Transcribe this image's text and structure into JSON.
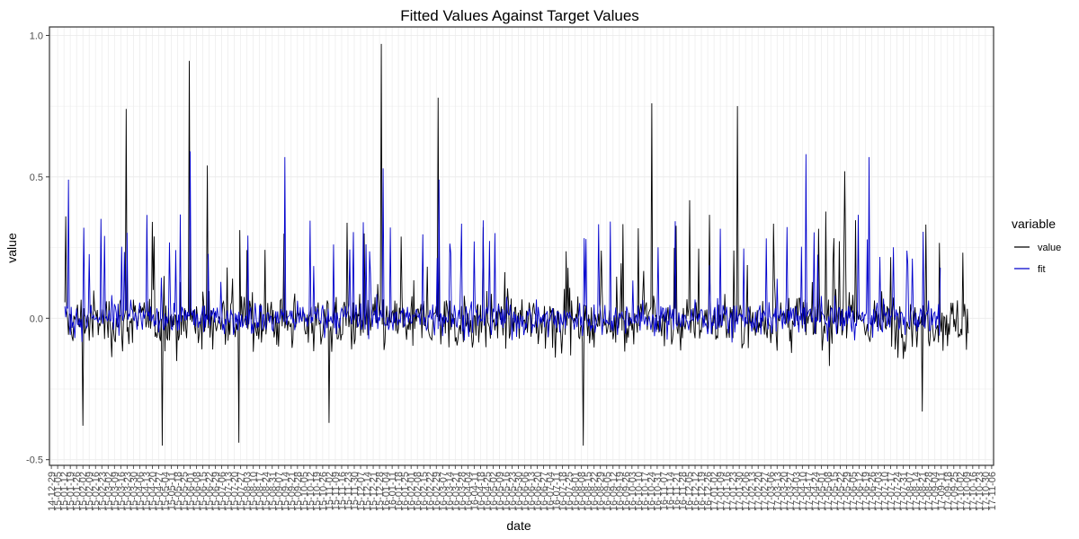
{
  "chart_data": {
    "type": "line",
    "title": "Fitted Values Against Target Values",
    "xlabel": "date",
    "ylabel": "value",
    "ylim": [
      -0.52,
      1.03
    ],
    "y_ticks": [
      -0.5,
      0.0,
      0.5,
      1.0
    ],
    "y_tick_labels": [
      "-0.5",
      "0.0",
      "0.5",
      "1.0"
    ],
    "grid": true,
    "legend": {
      "title": "variable",
      "placement": "right",
      "entries": [
        {
          "name": "value",
          "color": "#000000"
        },
        {
          "name": "fit",
          "color": "#0000cc"
        }
      ]
    },
    "x_tick_labels": [
      "14-12-29",
      "15-01-05",
      "15-01-12",
      "15-01-19",
      "15-01-26",
      "15-02-02",
      "15-02-09",
      "15-02-16",
      "15-02-23",
      "15-03-02",
      "15-03-09",
      "15-03-16",
      "15-03-23",
      "15-03-30",
      "15-04-06",
      "15-04-13",
      "15-04-20",
      "15-04-27",
      "15-05-04",
      "15-05-11",
      "15-05-18",
      "15-05-25",
      "15-06-01",
      "15-06-08",
      "15-06-15",
      "15-06-22",
      "15-06-29",
      "15-07-06",
      "15-07-13",
      "15-07-20",
      "15-07-27",
      "15-08-03",
      "15-08-10",
      "15-08-17",
      "15-08-24",
      "15-08-31",
      "15-09-07",
      "15-09-14",
      "15-09-21",
      "15-09-28",
      "15-10-05",
      "15-10-12",
      "15-10-19",
      "15-10-26",
      "15-11-02",
      "15-11-09",
      "15-11-16",
      "15-11-23",
      "15-11-30",
      "15-12-07",
      "15-12-14",
      "15-12-21",
      "15-12-28",
      "16-01-04",
      "16-01-11",
      "16-01-18",
      "16-01-25",
      "16-02-01",
      "16-02-08",
      "16-02-15",
      "16-02-22",
      "16-02-29",
      "16-03-07",
      "16-03-14",
      "16-03-21",
      "16-03-28",
      "16-04-04",
      "16-04-11",
      "16-04-18",
      "16-04-25",
      "16-05-02",
      "16-05-09",
      "16-05-16",
      "16-05-23",
      "16-05-30",
      "16-06-06",
      "16-06-13",
      "16-06-20",
      "16-06-27",
      "16-07-04",
      "16-07-11",
      "16-07-18",
      "16-07-25",
      "16-08-01",
      "16-08-08",
      "16-08-15",
      "16-08-22",
      "16-08-29",
      "16-09-05",
      "16-09-12",
      "16-09-19",
      "16-09-26",
      "16-10-03",
      "16-10-10",
      "16-10-17",
      "16-10-24",
      "16-10-31",
      "16-11-07",
      "16-11-14",
      "16-11-21",
      "16-11-28",
      "16-12-05",
      "16-12-12",
      "16-12-19",
      "16-12-26",
      "17-01-02",
      "17-01-09",
      "17-01-16",
      "17-01-23",
      "17-01-30",
      "17-02-06",
      "17-02-13",
      "17-02-20",
      "17-02-27",
      "17-03-06",
      "17-03-13",
      "17-03-20",
      "17-03-27",
      "17-04-03",
      "17-04-10",
      "17-04-17",
      "17-04-24",
      "17-05-01",
      "17-05-08",
      "17-05-15",
      "17-05-22",
      "17-05-29",
      "17-06-05",
      "17-06-12",
      "17-06-19",
      "17-06-26",
      "17-07-03",
      "17-07-10",
      "17-07-17",
      "17-07-24",
      "17-07-31",
      "17-08-07",
      "17-08-14",
      "17-08-21",
      "17-08-28",
      "17-09-04",
      "17-09-11",
      "17-09-18",
      "17-09-25",
      "17-10-02",
      "17-10-09",
      "17-10-16",
      "17-10-23",
      "17-10-30",
      "17-11-06"
    ],
    "series": [
      {
        "name": "value",
        "color": "#000000",
        "x_start": "15-01-13",
        "x_end": "17-10-11",
        "note_points": "daily observations; key peaks listed",
        "peaks": [
          {
            "x": "15-01-14",
            "y": 0.36
          },
          {
            "x": "15-02-02",
            "y": -0.38
          },
          {
            "x": "15-03-22",
            "y": 0.74
          },
          {
            "x": "15-05-01",
            "y": -0.45
          },
          {
            "x": "15-05-31",
            "y": 0.91
          },
          {
            "x": "15-06-20",
            "y": 0.54
          },
          {
            "x": "15-07-25",
            "y": -0.44
          },
          {
            "x": "15-11-02",
            "y": -0.37
          },
          {
            "x": "15-12-30",
            "y": 0.97
          },
          {
            "x": "16-03-02",
            "y": 0.78
          },
          {
            "x": "16-08-10",
            "y": -0.45
          },
          {
            "x": "16-10-25",
            "y": 0.76
          },
          {
            "x": "17-01-28",
            "y": 0.75
          },
          {
            "x": "17-05-27",
            "y": 0.52
          },
          {
            "x": "17-08-21",
            "y": -0.33
          }
        ]
      },
      {
        "name": "fit",
        "color": "#0000cc",
        "x_start": "15-01-13",
        "x_end": "17-09-10",
        "peaks": [
          {
            "x": "15-01-17",
            "y": 0.49
          },
          {
            "x": "15-06-01",
            "y": 0.59
          },
          {
            "x": "15-09-14",
            "y": 0.57
          },
          {
            "x": "16-01-01",
            "y": 0.53
          },
          {
            "x": "16-03-03",
            "y": 0.49
          },
          {
            "x": "17-04-14",
            "y": 0.58
          },
          {
            "x": "17-06-23",
            "y": 0.57
          }
        ]
      }
    ]
  }
}
